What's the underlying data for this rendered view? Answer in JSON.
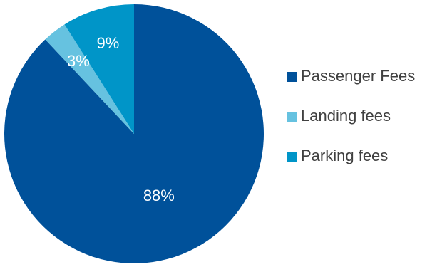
{
  "chart_data": {
    "type": "pie",
    "categories": [
      "Passenger Fees",
      "Landing fees",
      "Parking fees"
    ],
    "values": [
      88,
      3,
      9
    ],
    "data_labels": [
      "88%",
      "3%",
      "9%"
    ],
    "colors": [
      "#00519A",
      "#66C2E0",
      "#0095C8"
    ],
    "start_angle_deg": 0,
    "direction": "counterclockwise",
    "legend_position": "right",
    "title": ""
  }
}
